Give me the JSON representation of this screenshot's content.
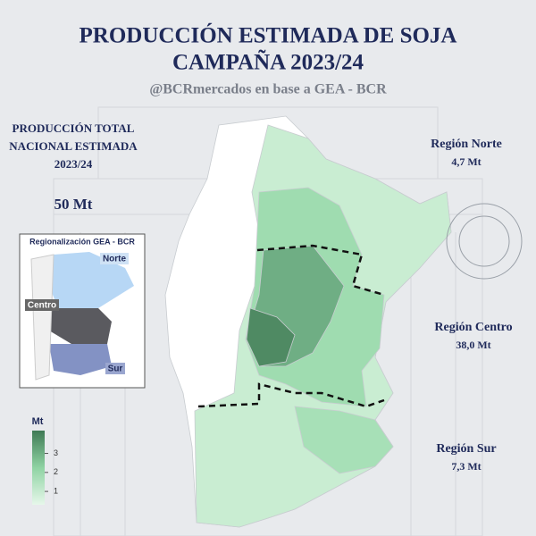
{
  "header": {
    "title": [
      "PRODUCCIÓN ESTIMADA DE SOJA",
      "CAMPAÑA 2023/24"
    ],
    "subtitle": "@BCRmercados en base a GEA - BCR"
  },
  "total": {
    "label": [
      "PRODUCCIÓN TOTAL",
      "NACIONAL ESTIMADA",
      "2023/24"
    ],
    "value": "50 Mt"
  },
  "inset": {
    "title": "Regionalización GEA - BCR",
    "labels": [
      "Norte",
      "Centro",
      "Sur"
    ]
  },
  "regions": [
    {
      "name": "Región Norte",
      "value": "4,7 Mt"
    },
    {
      "name": "Región Centro",
      "value": "38,0 Mt"
    },
    {
      "name": "Región Sur",
      "value": "7,3 Mt"
    }
  ],
  "legend": {
    "title": "Mt",
    "ticks": [
      1,
      2,
      3
    ],
    "lim": [
      0.3,
      4.2
    ]
  }
}
